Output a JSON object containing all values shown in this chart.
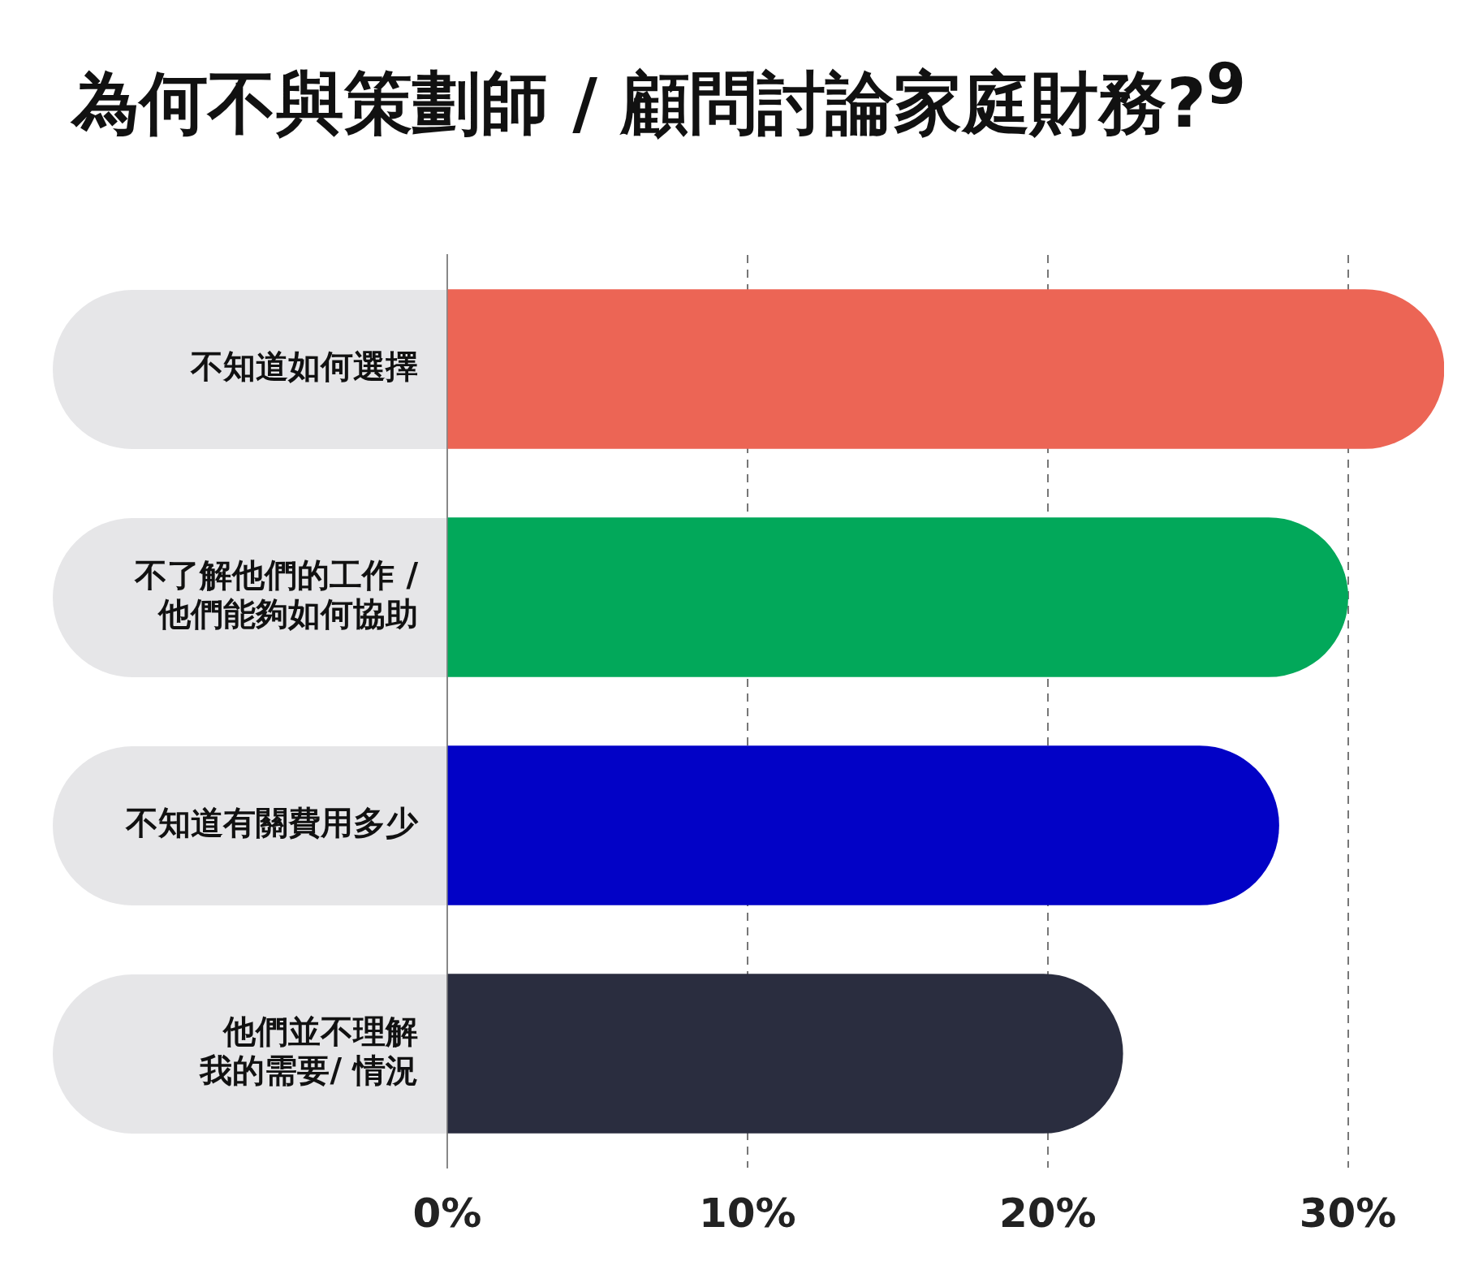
{
  "chart_data": {
    "type": "bar",
    "orientation": "horizontal",
    "title": "為何不與策劃師 / 顧問討論家庭財務?$^{9}$",
    "categories": [
      "不知道如何選擇",
      "不了解他們的工作 / 他們能夠如何協助",
      "不知道有關費用多少",
      "他們並不理解我的需要/ 情況"
    ],
    "values": [
      33.2,
      30.0,
      27.7,
      22.5
    ],
    "colors": [
      "#ec6555",
      "#02a85a",
      "#0202c6",
      "#2a2d3f"
    ],
    "xlim": [
      0,
      33.2
    ],
    "xticks": [
      {
        "value": 0,
        "label": "0%"
      },
      {
        "value": 10,
        "label": "10%"
      },
      {
        "value": 20,
        "label": "20%"
      },
      {
        "value": 30,
        "label": "30%"
      }
    ],
    "grid": "x",
    "legend": false
  }
}
